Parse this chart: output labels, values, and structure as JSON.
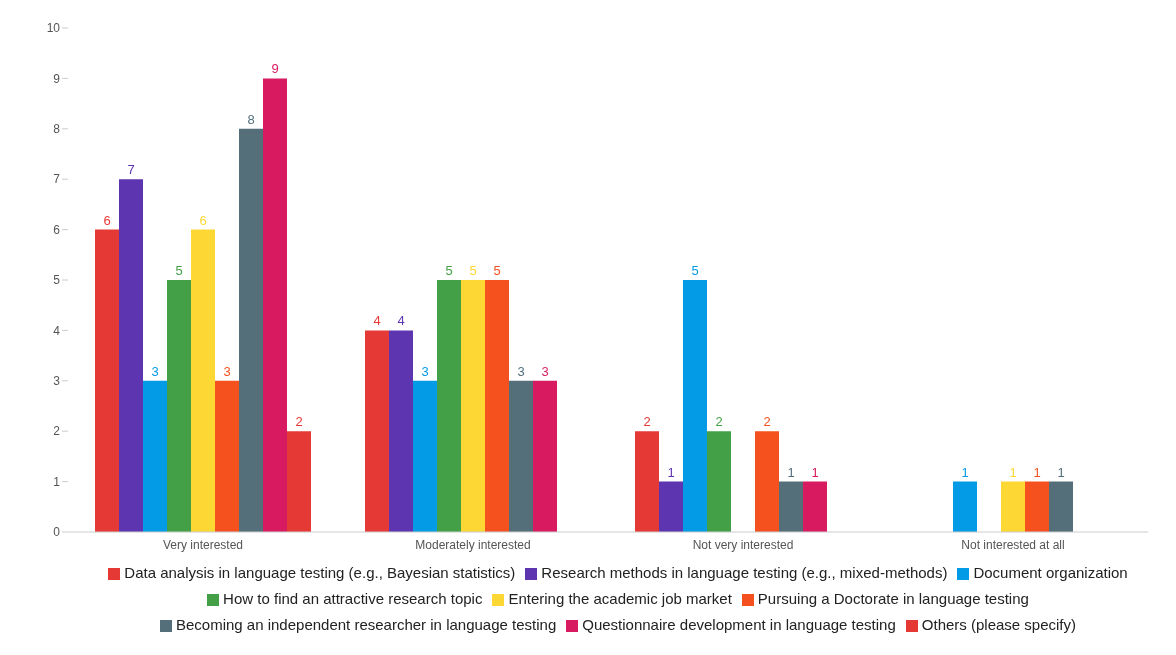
{
  "chart_data": {
    "type": "bar",
    "categories": [
      "Very interested",
      "Moderately interested",
      "Not very interested",
      "Not interested at all"
    ],
    "series": [
      {
        "name": "Data analysis in language testing (e.g., Bayesian statistics)",
        "color": "#e53935",
        "values": [
          6,
          4,
          2,
          null
        ]
      },
      {
        "name": "Research methods in language testing (e.g., mixed-methods)",
        "color": "#5e35b1",
        "values": [
          7,
          4,
          1,
          null
        ]
      },
      {
        "name": "Document organization",
        "color": "#039be5",
        "values": [
          3,
          3,
          5,
          1
        ]
      },
      {
        "name": "How to find an attractive research topic",
        "color": "#43a047",
        "values": [
          5,
          5,
          2,
          null
        ]
      },
      {
        "name": "Entering the academic job market",
        "color": "#fdd835",
        "values": [
          6,
          5,
          null,
          1
        ]
      },
      {
        "name": "Pursuing a Doctorate in language testing",
        "color": "#f4511e",
        "values": [
          3,
          5,
          2,
          1
        ]
      },
      {
        "name": "Becoming an independent researcher in language testing",
        "color": "#546e7a",
        "values": [
          8,
          3,
          1,
          1
        ]
      },
      {
        "name": "Questionnaire development in language testing",
        "color": "#d81b60",
        "values": [
          9,
          3,
          1,
          null
        ]
      },
      {
        "name": "Others (please specify)",
        "color": "#e53935",
        "values": [
          2,
          null,
          null,
          null
        ]
      }
    ],
    "ylim": [
      0,
      10
    ],
    "yticks": [
      0,
      1,
      2,
      3,
      4,
      5,
      6,
      7,
      8,
      9,
      10
    ],
    "grid": false,
    "legend": "bottom",
    "data_labels": true
  }
}
